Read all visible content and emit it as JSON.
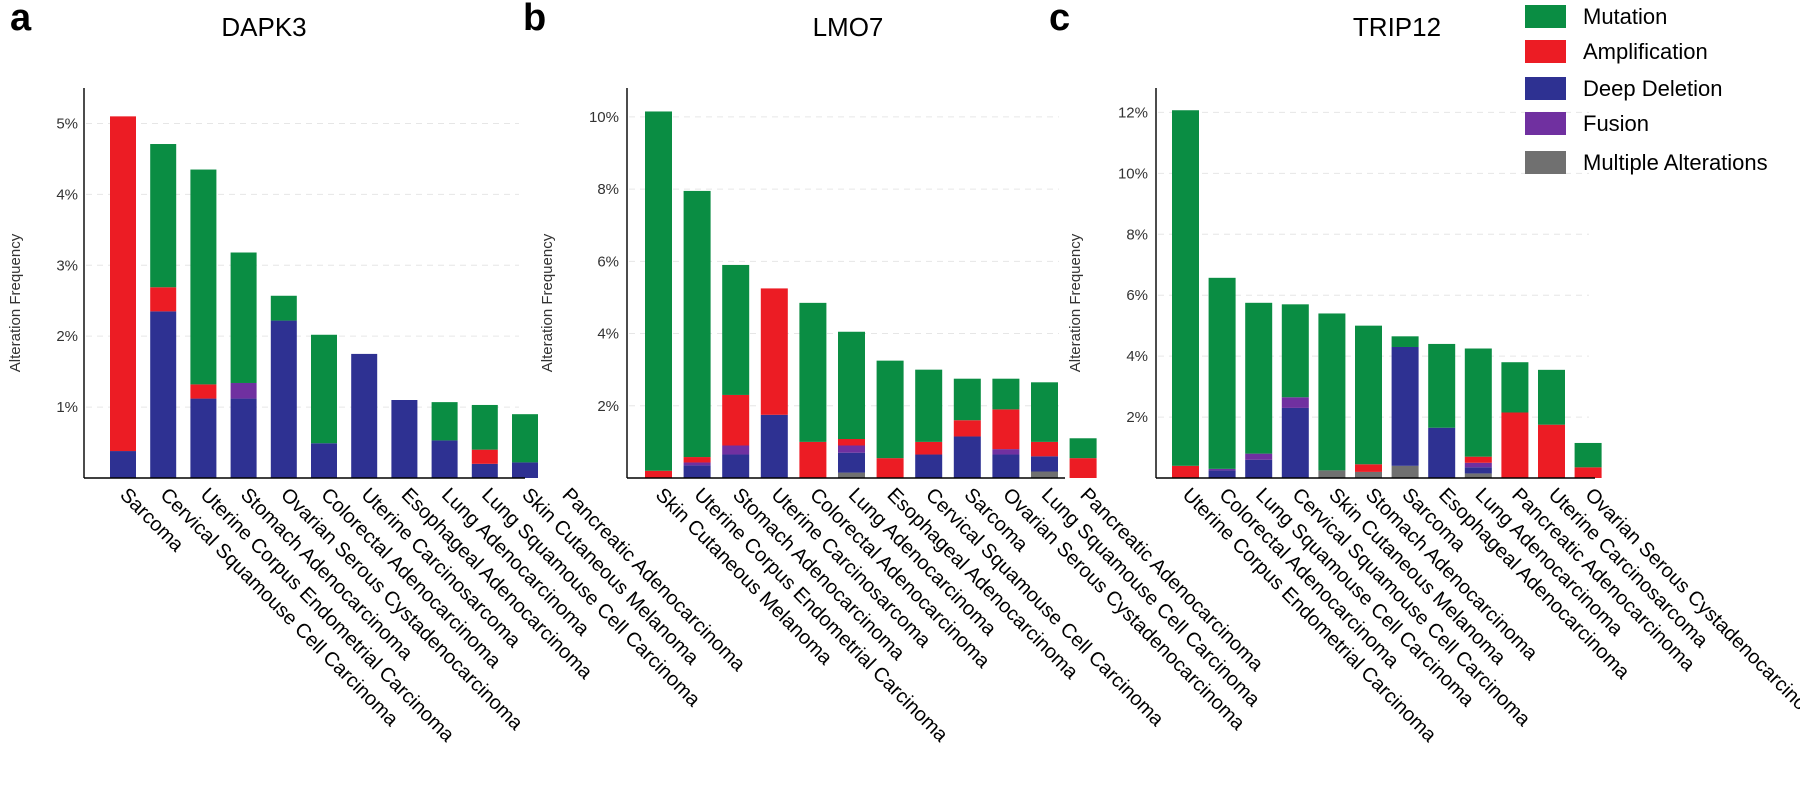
{
  "legend": {
    "items": [
      {
        "key": "mutation",
        "label": "Mutation",
        "color": "#0a8d43"
      },
      {
        "key": "amplification",
        "label": "Amplification",
        "color": "#ec1c24"
      },
      {
        "key": "deep_deletion",
        "label": "Deep Deletion",
        "color": "#2e3192"
      },
      {
        "key": "fusion",
        "label": "Fusion",
        "color": "#7030a0"
      },
      {
        "key": "multiple",
        "label": "Multiple Alterations",
        "color": "#707070"
      }
    ]
  },
  "chart_data": [
    {
      "type": "bar",
      "stacked": true,
      "panel": "a",
      "title": "DAPK3",
      "ylabel": "Alteration Frequency",
      "ylim": [
        0,
        5.5
      ],
      "yticks": [
        1,
        2,
        3,
        4,
        5
      ],
      "ytick_labels": [
        "1%",
        "2%",
        "3%",
        "4%",
        "5%"
      ],
      "categories": [
        "Sarcoma",
        "Cervical Squamouse Cell Carcinoma",
        "Uterine Corpus Endometrial Carcinoma",
        "Stomach Adenocarcinoma",
        "Ovarian Serous Cystadenocarcinoma",
        "Colorectal Adenocarcinoma",
        "Uterine Carcinosarcoma",
        "Esophageal Adenocarcinoma",
        "Lung Adenocarcinoma",
        "Lung Squamouse Cell Carcinoma",
        "Skin Cutaneous Melanoma",
        "Pancreatic Adenocarcinoma"
      ],
      "series": [
        {
          "key": "multiple",
          "name": "Multiple Alterations",
          "values": [
            0,
            0,
            0,
            0,
            0,
            0,
            0,
            0,
            0,
            0,
            0,
            0
          ]
        },
        {
          "key": "deep_deletion",
          "name": "Deep Deletion",
          "values": [
            0.38,
            2.35,
            1.12,
            1.12,
            2.22,
            0.49,
            1.75,
            1.1,
            0.53,
            0.2,
            0.22,
            0
          ]
        },
        {
          "key": "fusion",
          "name": "Fusion",
          "values": [
            0,
            0,
            0,
            0.22,
            0,
            0,
            0,
            0,
            0,
            0,
            0,
            0
          ]
        },
        {
          "key": "amplification",
          "name": "Amplification",
          "values": [
            4.72,
            0.34,
            0.2,
            0,
            0,
            0,
            0,
            0,
            0,
            0.2,
            0,
            0
          ]
        },
        {
          "key": "mutation",
          "name": "Mutation",
          "values": [
            0,
            2.02,
            3.03,
            1.84,
            0.35,
            1.53,
            0,
            0,
            0.54,
            0.63,
            0.68,
            0
          ]
        }
      ]
    },
    {
      "type": "bar",
      "stacked": true,
      "panel": "b",
      "title": "LMO7",
      "ylabel": "Alteration Frequency",
      "ylim": [
        0,
        10.8
      ],
      "yticks": [
        2,
        4,
        6,
        8,
        10
      ],
      "ytick_labels": [
        "2%",
        "4%",
        "6%",
        "8%",
        "10%"
      ],
      "categories": [
        "Skin Cutaneous Melanoma",
        "Uterine Corpus Endometrial Carcinoma",
        "Stomach Adenocarcinoma",
        "Uterine Carcinosarcoma",
        "Colorectal Adenocarcinoma",
        "Lung Adenocarcinoma",
        "Esophageal Adenocarcinoma",
        "Cervical Squamouse Cell Carcinoma",
        "Sarcoma",
        "Ovarian Serous Cystadenocarcinoma",
        "Lung Squamouse Cell Carcinoma",
        "Pancreatic Adenocarcinoma"
      ],
      "series": [
        {
          "key": "multiple",
          "name": "Multiple Alterations",
          "values": [
            0,
            0,
            0,
            0,
            0,
            0.15,
            0,
            0,
            0,
            0,
            0.18,
            0
          ]
        },
        {
          "key": "deep_deletion",
          "name": "Deep Deletion",
          "values": [
            0,
            0.35,
            0.65,
            1.75,
            0,
            0.55,
            0,
            0.65,
            1.15,
            0.65,
            0.42,
            0
          ]
        },
        {
          "key": "fusion",
          "name": "Fusion",
          "values": [
            0,
            0.08,
            0.25,
            0,
            0,
            0.2,
            0,
            0,
            0,
            0.15,
            0,
            0
          ]
        },
        {
          "key": "amplification",
          "name": "Amplification",
          "values": [
            0.2,
            0.15,
            1.4,
            3.5,
            1.0,
            0.18,
            0.55,
            0.35,
            0.45,
            1.1,
            0.4,
            0.55
          ]
        },
        {
          "key": "mutation",
          "name": "Mutation",
          "values": [
            9.95,
            7.37,
            3.6,
            0,
            3.85,
            2.97,
            2.7,
            2.0,
            1.15,
            0.85,
            1.65,
            0.55
          ]
        }
      ]
    },
    {
      "type": "bar",
      "stacked": true,
      "panel": "c",
      "title": "TRIP12",
      "ylabel": "Alteration Frequency",
      "ylim": [
        0,
        12.8
      ],
      "yticks": [
        2,
        4,
        6,
        8,
        10,
        12
      ],
      "ytick_labels": [
        "2%",
        "4%",
        "6%",
        "8%",
        "10%",
        "12%"
      ],
      "categories": [
        "Uterine Corpus Endometrial Carcinoma",
        "Colorectal Adenocarcinoma",
        "Lung Squamouse Cell Carcinoma",
        "Cervical Squamouse Cell Carcinoma",
        "Skin Cutaneous Melanoma",
        "Stomach Adenocarcinoma",
        "Sarcoma",
        "Esophageal Adenocarcinoma",
        "Lung Adenocarcinoma",
        "Pancreatic Adenocarcinoma",
        "Uterine Carcinosarcoma",
        "Ovarian Serous Cystadenocarcinoma"
      ],
      "series": [
        {
          "key": "multiple",
          "name": "Multiple Alterations",
          "values": [
            0,
            0,
            0,
            0,
            0.25,
            0.2,
            0.4,
            0,
            0.15,
            0,
            0,
            0
          ]
        },
        {
          "key": "deep_deletion",
          "name": "Deep Deletion",
          "values": [
            0,
            0.25,
            0.6,
            2.3,
            0,
            0,
            3.9,
            1.65,
            0.2,
            0,
            0,
            0
          ]
        },
        {
          "key": "fusion",
          "name": "Fusion",
          "values": [
            0,
            0.05,
            0.2,
            0.35,
            0,
            0,
            0,
            0,
            0.15,
            0,
            0,
            0
          ]
        },
        {
          "key": "amplification",
          "name": "Amplification",
          "values": [
            0.4,
            0,
            0,
            0,
            0,
            0.25,
            0,
            0,
            0.2,
            2.15,
            1.75,
            0.35
          ]
        },
        {
          "key": "mutation",
          "name": "Mutation",
          "values": [
            11.67,
            6.27,
            4.95,
            3.05,
            5.15,
            4.55,
            0.35,
            2.75,
            3.55,
            1.65,
            1.8,
            0.8
          ]
        }
      ]
    }
  ]
}
